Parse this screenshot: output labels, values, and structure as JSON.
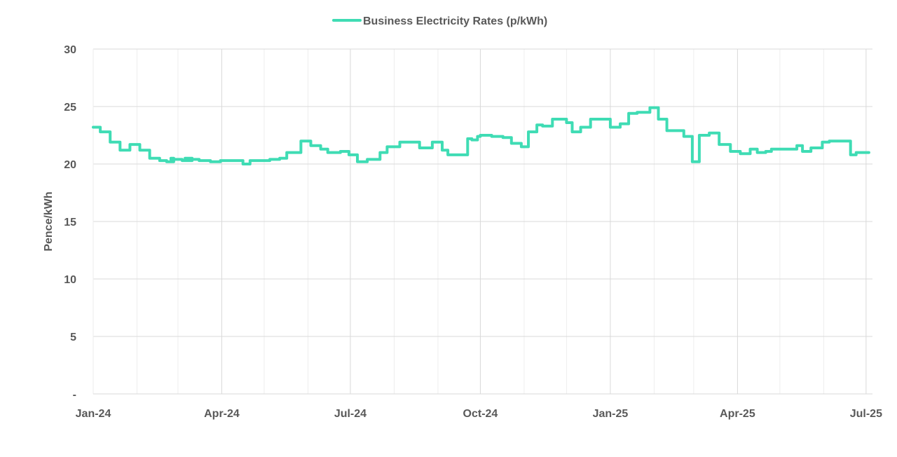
{
  "chart_data": {
    "type": "line",
    "title": "",
    "xlabel": "",
    "ylabel": "Pence/kWh",
    "ylim": [
      0,
      30
    ],
    "yticks": [
      {
        "value": 0,
        "label": "-"
      },
      {
        "value": 5,
        "label": "5"
      },
      {
        "value": 10,
        "label": "10"
      },
      {
        "value": 15,
        "label": "15"
      },
      {
        "value": 20,
        "label": "20"
      },
      {
        "value": 25,
        "label": "25"
      },
      {
        "value": 30,
        "label": "30"
      }
    ],
    "xlim_days": [
      0,
      552
    ],
    "xticks": [
      {
        "day": 0,
        "label": "Jan-24"
      },
      {
        "day": 91,
        "label": "Apr-24"
      },
      {
        "day": 182,
        "label": "Jul-24"
      },
      {
        "day": 274,
        "label": "Oct-24"
      },
      {
        "day": 366,
        "label": "Jan-25"
      },
      {
        "day": 456,
        "label": "Apr-25"
      },
      {
        "day": 547,
        "label": "Jul-25"
      }
    ],
    "minor_grid_days": [
      31,
      60,
      121,
      152,
      213,
      244,
      305,
      335,
      397,
      425,
      486,
      517
    ],
    "grid": true,
    "legend_position": "top-center",
    "colors": {
      "series": "#3fdcb4",
      "grid_major": "#d9d9d9",
      "grid_minor": "#eeeeee",
      "axis": "#d9d9d9",
      "text": "#595959"
    },
    "series": [
      {
        "name": "Business Electricity Rates (p/kWh)",
        "step": true,
        "days": [
          0,
          5,
          12,
          19,
          26,
          33,
          40,
          47,
          52,
          57,
          55,
          60,
          63,
          70,
          65,
          75,
          83,
          90,
          96,
          106,
          111,
          123,
          125,
          132,
          137,
          145,
          147,
          154,
          161,
          166,
          168,
          175,
          181,
          187,
          190,
          194,
          195,
          203,
          208,
          217,
          225,
          231,
          240,
          247,
          251,
          259,
          265,
          268,
          272,
          274,
          282,
          290,
          296,
          303,
          308,
          314,
          318,
          325,
          326,
          335,
          339,
          345,
          352,
          356,
          366,
          373,
          379,
          385,
          394,
          400,
          406,
          418,
          424,
          426,
          429,
          436,
          443,
          451,
          458,
          465,
          470,
          476,
          480,
          485,
          498,
          502,
          508,
          516,
          521,
          528,
          536,
          540,
          546
        ],
        "values": [
          23.2,
          22.8,
          21.9,
          21.2,
          21.7,
          21.2,
          20.5,
          20.3,
          20.2,
          20.5,
          20.4,
          20.4,
          20.3,
          20.5,
          20.4,
          20.3,
          20.2,
          20.3,
          20.3,
          20.0,
          20.3,
          20.3,
          20.4,
          20.5,
          21.0,
          21.0,
          22.0,
          21.6,
          21.3,
          21.0,
          21.0,
          21.1,
          20.8,
          20.2,
          20.2,
          20.4,
          20.4,
          21.0,
          21.5,
          21.9,
          21.9,
          21.4,
          21.9,
          21.2,
          20.8,
          20.8,
          22.2,
          22.1,
          22.4,
          22.5,
          22.4,
          22.3,
          21.8,
          21.5,
          22.8,
          23.4,
          23.3,
          23.9,
          23.9,
          23.6,
          22.8,
          23.2,
          23.9,
          23.9,
          23.2,
          23.5,
          24.4,
          24.5,
          24.9,
          23.9,
          22.9,
          22.4,
          20.2,
          20.2,
          22.5,
          22.7,
          21.7,
          21.1,
          20.9,
          21.3,
          21.0,
          21.1,
          21.3,
          21.3,
          21.6,
          21.1,
          21.4,
          21.9,
          22.0,
          22.0,
          20.8,
          21.0,
          21.0
        ]
      }
    ]
  }
}
